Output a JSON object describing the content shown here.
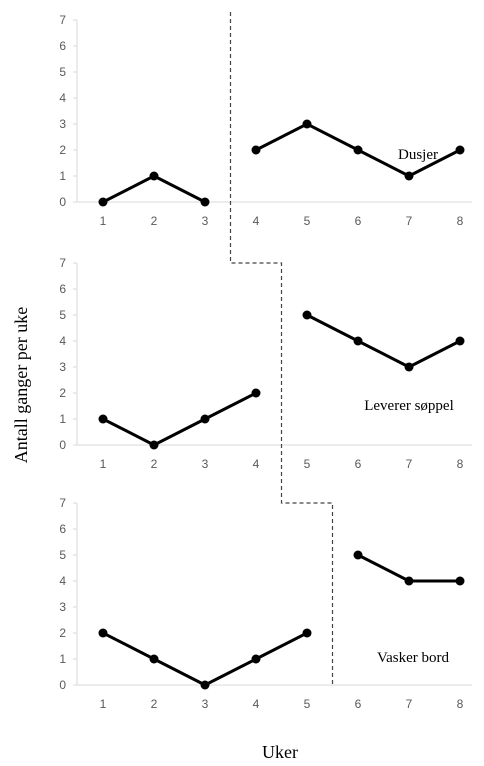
{
  "chart_data": {
    "type": "line",
    "xlabel": "Uker",
    "ylabel": "Antall ganger per uke",
    "ylim": [
      0,
      7
    ],
    "yticks": [
      "0",
      "1",
      "2",
      "3",
      "4",
      "5",
      "6",
      "7"
    ],
    "x": [
      "1",
      "2",
      "3",
      "4",
      "5",
      "6",
      "7",
      "8"
    ],
    "panels": [
      {
        "name": "Dusjer",
        "phase_change_after_week": 3,
        "baseline": [
          0,
          1,
          0,
          null,
          null,
          null,
          null,
          null
        ],
        "intervention": [
          null,
          null,
          null,
          2,
          3,
          2,
          1,
          2
        ]
      },
      {
        "name": "Leverer søppel",
        "phase_change_after_week": 4,
        "baseline": [
          1,
          0,
          1,
          2,
          null,
          null,
          null,
          null
        ],
        "intervention": [
          null,
          null,
          null,
          null,
          5,
          4,
          3,
          4
        ]
      },
      {
        "name": "Vasker bord",
        "phase_change_after_week": 5,
        "baseline": [
          2,
          1,
          0,
          1,
          2,
          null,
          null,
          null
        ],
        "intervention": [
          null,
          null,
          null,
          null,
          null,
          5,
          4,
          4
        ]
      }
    ]
  }
}
